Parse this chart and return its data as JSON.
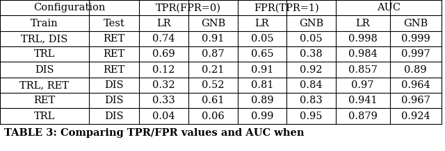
{
  "header_row1": [
    "Configuration",
    "TPR(FPR=0)",
    "FPR(TPR=1)",
    "AUC"
  ],
  "header_row2": [
    "Train",
    "Test",
    "LR",
    "GNB",
    "LR",
    "GNB",
    "LR",
    "GNB"
  ],
  "rows": [
    [
      "TRL, DIS",
      "RET",
      "0.74",
      "0.91",
      "0.05",
      "0.05",
      "0.998",
      "0.999"
    ],
    [
      "TRL",
      "RET",
      "0.69",
      "0.87",
      "0.65",
      "0.38",
      "0.984",
      "0.997"
    ],
    [
      "DIS",
      "RET",
      "0.12",
      "0.21",
      "0.91",
      "0.92",
      "0.857",
      "0.89"
    ],
    [
      "TRL, RET",
      "DIS",
      "0.32",
      "0.52",
      "0.81",
      "0.84",
      "0.97",
      "0.964"
    ],
    [
      "RET",
      "DIS",
      "0.33",
      "0.61",
      "0.89",
      "0.83",
      "0.941",
      "0.967"
    ],
    [
      "TRL",
      "DIS",
      "0.04",
      "0.06",
      "0.99",
      "0.95",
      "0.879",
      "0.924"
    ]
  ],
  "caption": "TABLE 3: Comparing TPR/FPR values and AUC when",
  "bg_color": "#ffffff",
  "font_size": 10.5,
  "caption_font_size": 10.5
}
